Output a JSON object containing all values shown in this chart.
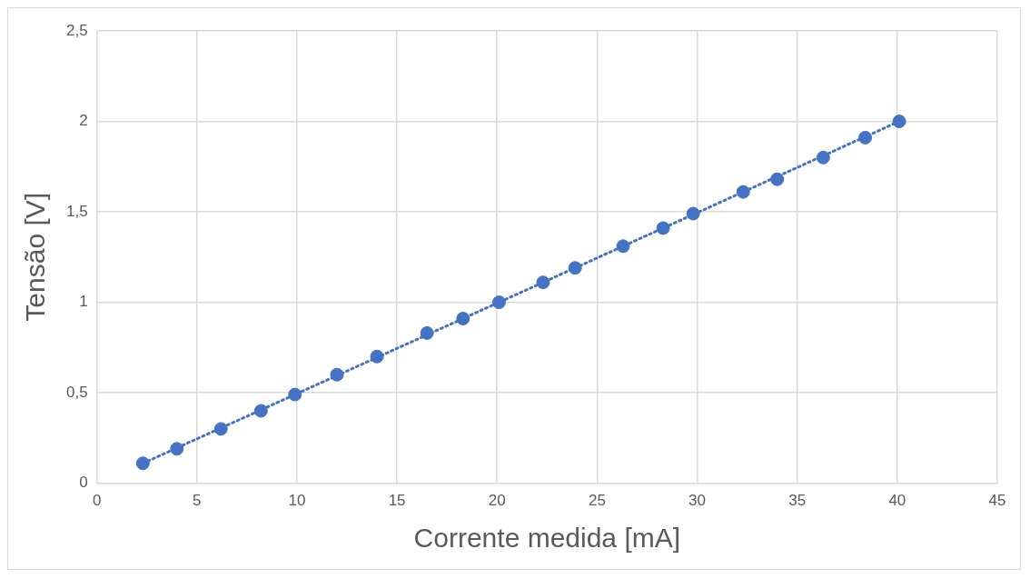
{
  "chart_data": {
    "type": "scatter",
    "xlabel": "Corrente medida [mA]",
    "ylabel": "Tensão [V]",
    "x": [
      2.3,
      4.0,
      6.2,
      8.2,
      9.9,
      12.0,
      14.0,
      16.5,
      18.3,
      20.1,
      22.3,
      23.9,
      26.3,
      28.3,
      29.8,
      32.3,
      34.0,
      36.3,
      38.4,
      40.1
    ],
    "series": [
      {
        "color": "#4472c4",
        "marker": "circle",
        "values": [
          0.11,
          0.19,
          0.3,
          0.4,
          0.49,
          0.6,
          0.7,
          0.83,
          0.91,
          1.0,
          1.11,
          1.19,
          1.31,
          1.41,
          1.49,
          1.61,
          1.68,
          1.8,
          1.91,
          2.0
        ]
      },
      {
        "type": "line",
        "color": "#4472c4",
        "line_style": "dotted",
        "marker": "none",
        "x": [
          2.3,
          40.1
        ],
        "values": [
          0.11,
          2.0
        ]
      }
    ],
    "xlim": [
      0,
      45
    ],
    "xticks": [
      0,
      5,
      10,
      15,
      20,
      25,
      30,
      35,
      40,
      45
    ],
    "ylim": [
      0,
      2.5
    ],
    "yticks": [
      0,
      {
        "value": 0.5,
        "label": "0,5"
      },
      1,
      {
        "value": 1.5,
        "label": "1,5"
      },
      2,
      {
        "value": 2.5,
        "label": "2,5"
      }
    ],
    "grid": true,
    "legend": false
  }
}
